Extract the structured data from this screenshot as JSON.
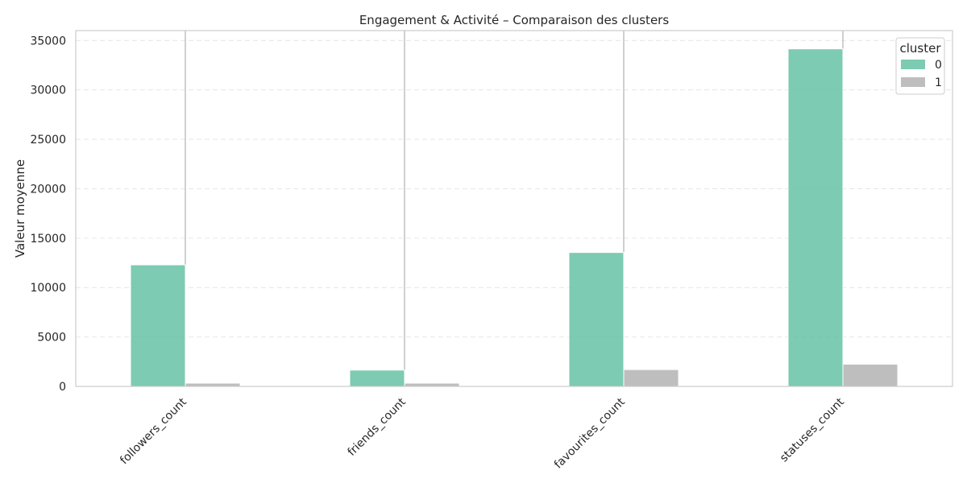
{
  "chart_data": {
    "type": "bar",
    "title": "Engagement & Activité – Comparaison des clusters",
    "xlabel": "",
    "ylabel": "Valeur moyenne",
    "categories": [
      "followers_count",
      "friends_count",
      "favourites_count",
      "statuses_count"
    ],
    "series": [
      {
        "name": "0",
        "values": [
          12300,
          1650,
          13550,
          34150
        ],
        "color": "#66c2a5"
      },
      {
        "name": "1",
        "values": [
          330,
          330,
          1700,
          2250
        ],
        "color": "#b3b3b3"
      }
    ],
    "ylim": [
      0,
      36000
    ],
    "yticks": [
      0,
      5000,
      10000,
      15000,
      20000,
      25000,
      30000,
      35000
    ],
    "error_bar_tops": [
      36000,
      36000,
      36000,
      36000
    ],
    "grid": true,
    "legend": {
      "title": "cluster",
      "position": "top-right"
    }
  }
}
